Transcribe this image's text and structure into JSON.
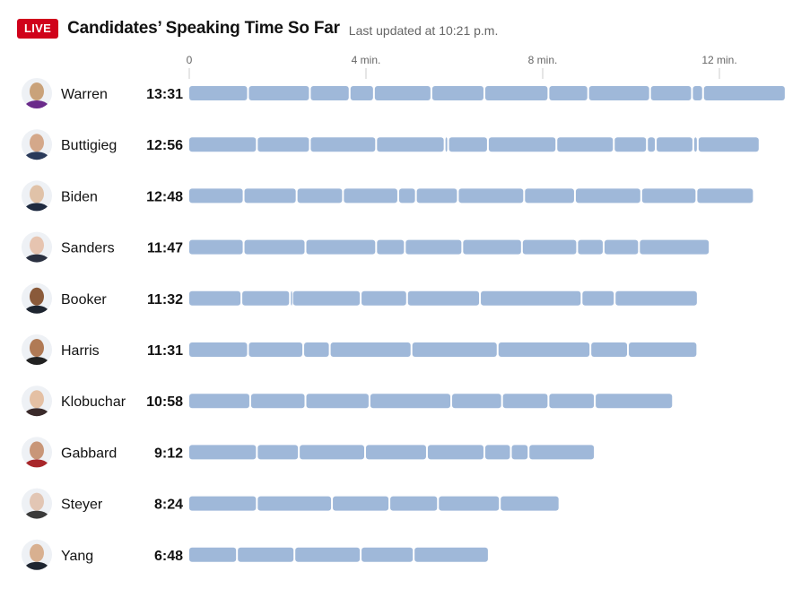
{
  "header": {
    "live_label": "LIVE",
    "title": "Candidates’ Speaking Time So Far",
    "updated": "Last updated at 10:21 p.m."
  },
  "colors": {
    "bar": "#9fb8d9",
    "live": "#d0021b",
    "tick": "#cccccc"
  },
  "chart_data": {
    "type": "bar",
    "orientation": "horizontal",
    "stacked_segments": true,
    "x_unit": "minutes",
    "xlim": [
      0,
      14.6
    ],
    "x_ticks": [
      {
        "value": 0,
        "label": "0"
      },
      {
        "value": 4,
        "label": "4 min."
      },
      {
        "value": 8,
        "label": "8 min."
      },
      {
        "value": 12,
        "label": "12 min."
      }
    ],
    "rows": [
      {
        "name": "Warren",
        "time": "13:31",
        "total": 13.52,
        "avatar_color": "#c9a27a",
        "shirt_color": "#6a2a8a",
        "segments": [
          1.35,
          1.4,
          0.9,
          0.55,
          1.3,
          1.2,
          1.45,
          0.9,
          1.4,
          0.95,
          0.25,
          1.87
        ]
      },
      {
        "name": "Buttigieg",
        "time": "12:56",
        "total": 12.93,
        "avatar_color": "#d4a88a",
        "shirt_color": "#2a3a5a",
        "segments": [
          1.55,
          1.2,
          1.5,
          1.55,
          0.08,
          0.9,
          1.55,
          1.3,
          0.75,
          0.2,
          0.85,
          0.1,
          1.4
        ]
      },
      {
        "name": "Biden",
        "time": "12:48",
        "total": 12.8,
        "avatar_color": "#e0c2a8",
        "shirt_color": "#1e2a40",
        "segments": [
          1.25,
          1.2,
          1.05,
          1.25,
          0.4,
          0.95,
          1.5,
          1.15,
          1.5,
          1.25,
          1.3
        ]
      },
      {
        "name": "Sanders",
        "time": "11:47",
        "total": 11.78,
        "avatar_color": "#e6c4b0",
        "shirt_color": "#2a3040",
        "segments": [
          1.25,
          1.4,
          1.6,
          0.65,
          1.3,
          1.35,
          1.25,
          0.6,
          0.8,
          1.6
        ]
      },
      {
        "name": "Booker",
        "time": "11:32",
        "total": 11.53,
        "avatar_color": "#8a5a3a",
        "shirt_color": "#1e2530",
        "segments": [
          1.2,
          1.1,
          0.05,
          1.55,
          1.05,
          1.65,
          2.3,
          0.75,
          1.88
        ]
      },
      {
        "name": "Harris",
        "time": "11:31",
        "total": 11.52,
        "avatar_color": "#b07a55",
        "shirt_color": "#222222",
        "segments": [
          1.35,
          1.25,
          0.6,
          1.85,
          1.95,
          2.1,
          0.85,
          1.57
        ]
      },
      {
        "name": "Klobuchar",
        "time": "10:58",
        "total": 10.97,
        "avatar_color": "#e4c0a4",
        "shirt_color": "#3a2a2a",
        "segments": [
          1.4,
          1.25,
          1.45,
          1.85,
          1.15,
          1.05,
          1.05,
          1.77
        ]
      },
      {
        "name": "Gabbard",
        "time": "9:12",
        "total": 9.2,
        "avatar_color": "#c89678",
        "shirt_color": "#a8262a",
        "segments": [
          1.55,
          0.95,
          1.5,
          1.4,
          1.3,
          0.6,
          0.4,
          1.5
        ]
      },
      {
        "name": "Steyer",
        "time": "8:24",
        "total": 8.4,
        "avatar_color": "#e2c6b4",
        "shirt_color": "#3a3a3a",
        "segments": [
          1.55,
          1.7,
          1.3,
          1.1,
          1.4,
          1.35
        ]
      },
      {
        "name": "Yang",
        "time": "6:48",
        "total": 6.8,
        "avatar_color": "#d8b090",
        "shirt_color": "#1e2530",
        "segments": [
          1.1,
          1.3,
          1.5,
          1.2,
          1.7
        ]
      }
    ]
  }
}
